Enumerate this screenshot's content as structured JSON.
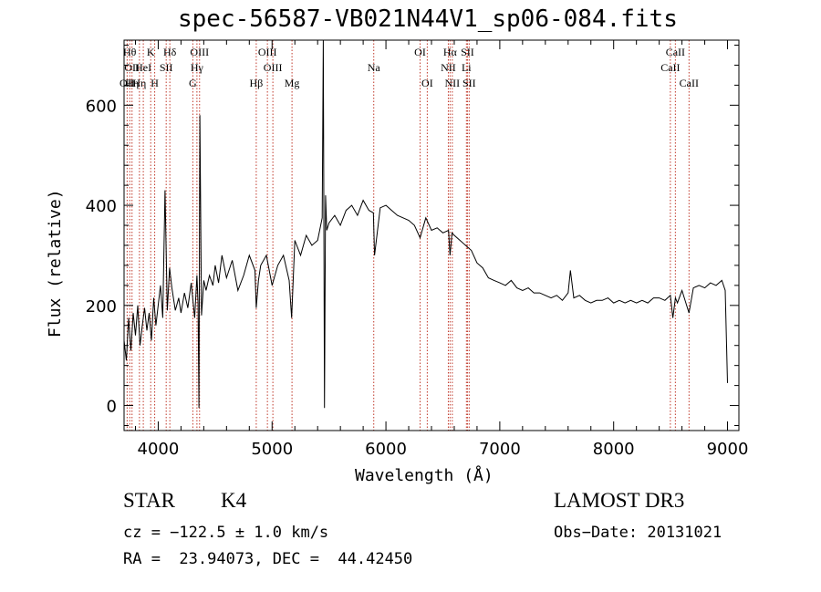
{
  "chart_data": {
    "type": "line",
    "title": "spec-56587-VB021N44V1_sp06-084.fits",
    "xlabel": "Wavelength (Å)",
    "ylabel": "Flux (relative)",
    "xlim": [
      3700,
      9100
    ],
    "ylim": [
      -50,
      730
    ],
    "xticks": [
      4000,
      5000,
      6000,
      7000,
      8000,
      9000
    ],
    "xtick_labels": [
      "4000",
      "5000",
      "6000",
      "7000",
      "8000",
      "9000"
    ],
    "yticks": [
      0,
      200,
      400,
      600
    ],
    "ytick_labels": [
      "0",
      "200",
      "400",
      "600"
    ],
    "series": [
      {
        "name": "flux",
        "x": [
          3700,
          3720,
          3740,
          3760,
          3780,
          3800,
          3820,
          3840,
          3860,
          3880,
          3900,
          3920,
          3940,
          3960,
          3980,
          4000,
          4020,
          4040,
          4060,
          4080,
          4100,
          4120,
          4150,
          4180,
          4200,
          4230,
          4260,
          4290,
          4320,
          4340,
          4350,
          4358,
          4366,
          4380,
          4400,
          4420,
          4450,
          4480,
          4500,
          4530,
          4560,
          4600,
          4650,
          4700,
          4750,
          4800,
          4850,
          4861,
          4880,
          4900,
          4950,
          5000,
          5050,
          5100,
          5150,
          5172,
          5200,
          5250,
          5300,
          5350,
          5400,
          5440,
          5450,
          5460,
          5470,
          5480,
          5500,
          5550,
          5600,
          5650,
          5700,
          5750,
          5800,
          5850,
          5890,
          5900,
          5950,
          6000,
          6050,
          6100,
          6150,
          6200,
          6250,
          6300,
          6350,
          6400,
          6450,
          6500,
          6550,
          6563,
          6580,
          6600,
          6650,
          6700,
          6750,
          6800,
          6850,
          6900,
          6950,
          7000,
          7050,
          7100,
          7150,
          7200,
          7250,
          7300,
          7350,
          7400,
          7450,
          7500,
          7550,
          7600,
          7620,
          7650,
          7700,
          7750,
          7800,
          7850,
          7900,
          7950,
          8000,
          8050,
          8100,
          8150,
          8200,
          8250,
          8300,
          8350,
          8400,
          8450,
          8498,
          8520,
          8542,
          8560,
          8600,
          8662,
          8700,
          8750,
          8800,
          8850,
          8900,
          8950,
          8980,
          9000
        ],
        "values": [
          130,
          90,
          175,
          110,
          185,
          140,
          200,
          120,
          160,
          195,
          150,
          185,
          130,
          215,
          160,
          200,
          240,
          175,
          430,
          190,
          275,
          235,
          190,
          215,
          185,
          225,
          195,
          245,
          175,
          260,
          205,
          -5,
          580,
          180,
          250,
          230,
          260,
          240,
          280,
          245,
          300,
          255,
          290,
          230,
          260,
          300,
          270,
          195,
          250,
          280,
          300,
          240,
          280,
          300,
          250,
          175,
          330,
          300,
          340,
          320,
          330,
          375,
          730,
          -5,
          420,
          350,
          365,
          380,
          360,
          390,
          400,
          380,
          410,
          390,
          385,
          300,
          395,
          400,
          390,
          380,
          375,
          370,
          360,
          335,
          375,
          350,
          355,
          345,
          350,
          300,
          345,
          340,
          330,
          320,
          310,
          285,
          275,
          255,
          250,
          245,
          240,
          250,
          235,
          230,
          235,
          225,
          225,
          220,
          215,
          220,
          210,
          225,
          270,
          215,
          220,
          210,
          205,
          210,
          210,
          215,
          205,
          210,
          205,
          210,
          205,
          210,
          205,
          215,
          215,
          210,
          220,
          175,
          215,
          205,
          230,
          185,
          235,
          240,
          235,
          245,
          240,
          250,
          230,
          45
        ]
      }
    ],
    "lines": [
      {
        "x": 3727,
        "labels": [
          "OII"
        ],
        "rows": [
          2
        ]
      },
      {
        "x": 3750,
        "labels": [
          "Hθ"
        ],
        "rows": [
          0
        ]
      },
      {
        "x": 3770,
        "labels": [
          "OII",
          "Hη"
        ],
        "rows": [
          1,
          2
        ]
      },
      {
        "x": 3835,
        "labels": [
          "Hη"
        ],
        "rows": [
          2
        ]
      },
      {
        "x": 3869,
        "labels": [
          "HeI"
        ],
        "rows": [
          1
        ]
      },
      {
        "x": 3934,
        "labels": [
          "K"
        ],
        "rows": [
          0
        ]
      },
      {
        "x": 3969,
        "labels": [
          "H"
        ],
        "rows": [
          2
        ]
      },
      {
        "x": 4070,
        "labels": [
          "SII"
        ],
        "rows": [
          1
        ]
      },
      {
        "x": 4102,
        "labels": [
          "Hδ"
        ],
        "rows": [
          0
        ]
      },
      {
        "x": 4304,
        "labels": [
          "G"
        ],
        "rows": [
          2
        ]
      },
      {
        "x": 4340,
        "labels": [
          "Hγ"
        ],
        "rows": [
          1
        ]
      },
      {
        "x": 4363,
        "labels": [
          "OIII"
        ],
        "rows": [
          0
        ]
      },
      {
        "x": 4861,
        "labels": [
          "Hβ"
        ],
        "rows": [
          2
        ]
      },
      {
        "x": 4959,
        "labels": [
          "OIII"
        ],
        "rows": [
          0
        ]
      },
      {
        "x": 5007,
        "labels": [
          "OIII"
        ],
        "rows": [
          1
        ]
      },
      {
        "x": 5175,
        "labels": [
          "Mg"
        ],
        "rows": [
          2
        ]
      },
      {
        "x": 5893,
        "labels": [
          "Na"
        ],
        "rows": [
          1
        ]
      },
      {
        "x": 6300,
        "labels": [
          "OI"
        ],
        "rows": [
          0
        ]
      },
      {
        "x": 6363,
        "labels": [
          "OI"
        ],
        "rows": [
          2
        ]
      },
      {
        "x": 6548,
        "labels": [
          "NII"
        ],
        "rows": [
          1
        ]
      },
      {
        "x": 6563,
        "labels": [
          "Hα"
        ],
        "rows": [
          0
        ]
      },
      {
        "x": 6583,
        "labels": [
          "NII"
        ],
        "rows": [
          2
        ]
      },
      {
        "x": 6707,
        "labels": [
          "Li"
        ],
        "rows": [
          1
        ]
      },
      {
        "x": 6716,
        "labels": [
          "SII"
        ],
        "rows": [
          0
        ]
      },
      {
        "x": 6731,
        "labels": [
          "SII"
        ],
        "rows": [
          2
        ]
      },
      {
        "x": 8498,
        "labels": [
          "CaII"
        ],
        "rows": [
          1
        ]
      },
      {
        "x": 8542,
        "labels": [
          "CaII"
        ],
        "rows": [
          0
        ]
      },
      {
        "x": 8662,
        "labels": [
          "CaII"
        ],
        "rows": [
          2
        ]
      }
    ],
    "line_color": "#c0392b",
    "curve_color": "#000000"
  },
  "info": {
    "object_class": "STAR",
    "subclass": "K4",
    "survey": "LAMOST DR3",
    "redshift": "cz = −122.5 ± 1.0 km/s",
    "obs_date": "Obs−Date: 20131021",
    "coords": "RA =  23.94073, DEC =  44.42450"
  }
}
